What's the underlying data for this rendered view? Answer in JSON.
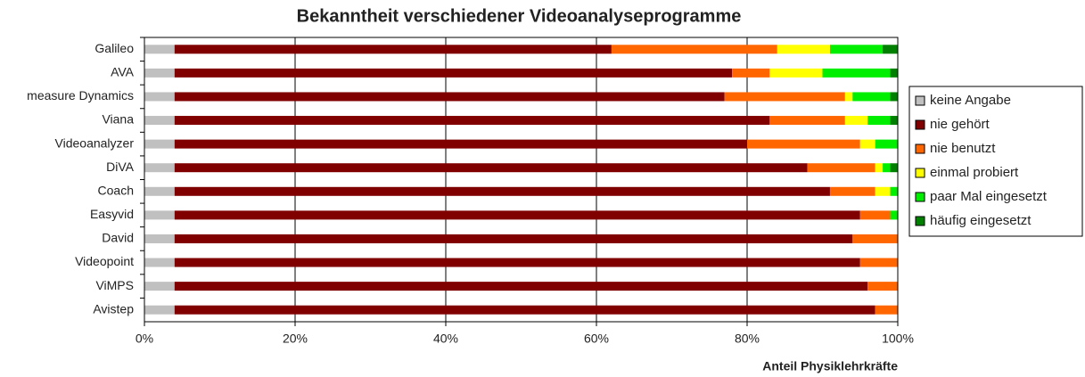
{
  "chart_data": {
    "type": "stacked-bar-horizontal",
    "title": "Bekanntheit verschiedener Videoanalyseprogramme",
    "x_label": "Anteil Physiklehrkräfte",
    "categories": [
      "Galileo",
      "AVA",
      "measure Dynamics",
      "Viana",
      "Videoanalyzer",
      "DiVA",
      "Coach",
      "Easyvid",
      "David",
      "Videopoint",
      "ViMPS",
      "Avistep"
    ],
    "series": [
      {
        "name": "keine Angabe",
        "color": "#c0c0c0",
        "values": [
          4,
          4,
          4,
          4,
          4,
          4,
          4,
          4,
          4,
          4,
          4,
          4
        ]
      },
      {
        "name": "nie gehört",
        "color": "#800000",
        "values": [
          58,
          74,
          73,
          79,
          76,
          84,
          87,
          91,
          90,
          91,
          92,
          93
        ]
      },
      {
        "name": "nie benutzt",
        "color": "#ff6600",
        "values": [
          22,
          5,
          16,
          10,
          15,
          9,
          6,
          4,
          6,
          5,
          4,
          3
        ]
      },
      {
        "name": "einmal probiert",
        "color": "#ffff00",
        "values": [
          7,
          7,
          1,
          3,
          2,
          1,
          2,
          0,
          0,
          0,
          0,
          0
        ]
      },
      {
        "name": "paar Mal eingesetzt",
        "color": "#00ee00",
        "values": [
          7,
          9,
          5,
          3,
          3,
          1,
          1,
          1,
          0,
          0,
          0,
          0
        ]
      },
      {
        "name": "häufig eingesetzt",
        "color": "#008000",
        "values": [
          2,
          1,
          1,
          1,
          0,
          1,
          0,
          0,
          0,
          0,
          0,
          0
        ]
      }
    ],
    "xlim": [
      0,
      100
    ],
    "xticks": [
      {
        "value": 0,
        "label": "0%"
      },
      {
        "value": 20,
        "label": "20%"
      },
      {
        "value": 40,
        "label": "40%"
      },
      {
        "value": 60,
        "label": "60%"
      },
      {
        "value": 80,
        "label": "80%"
      },
      {
        "value": 100,
        "label": "100%"
      }
    ],
    "grid": true,
    "legend": "right"
  }
}
